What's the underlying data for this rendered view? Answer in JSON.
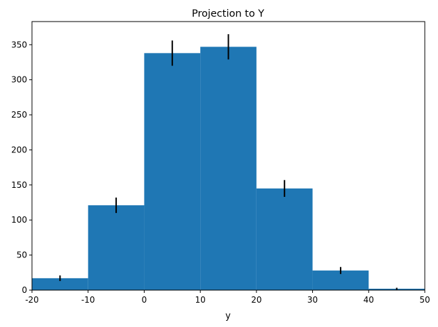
{
  "chart_data": {
    "type": "bar",
    "title": "Projection to Y",
    "xlabel": "y",
    "ylabel": "",
    "xlim": [
      -20,
      50
    ],
    "ylim": [
      0,
      383
    ],
    "grid": false,
    "bar_color": "#1f77b4",
    "errorbar_color": "#000000",
    "bins": [
      {
        "x0": -20,
        "x1": -10,
        "value": 17,
        "error": 4
      },
      {
        "x0": -10,
        "x1": 0,
        "value": 121,
        "error": 11
      },
      {
        "x0": 0,
        "x1": 10,
        "value": 338,
        "error": 18
      },
      {
        "x0": 10,
        "x1": 20,
        "value": 347,
        "error": 18
      },
      {
        "x0": 20,
        "x1": 30,
        "value": 145,
        "error": 12
      },
      {
        "x0": 30,
        "x1": 40,
        "value": 28,
        "error": 5
      },
      {
        "x0": 40,
        "x1": 50,
        "value": 2,
        "error": 1.4
      }
    ],
    "xticks": [
      -20,
      -10,
      0,
      10,
      20,
      30,
      40,
      50
    ],
    "yticks": [
      0,
      50,
      100,
      150,
      200,
      250,
      300,
      350
    ]
  }
}
